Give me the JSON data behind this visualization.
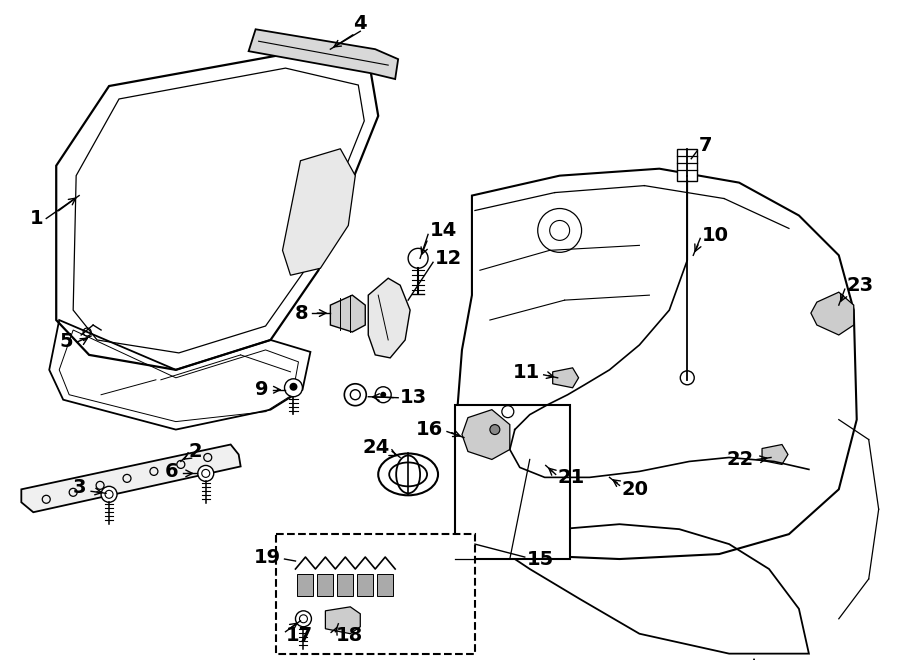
{
  "background_color": "#ffffff",
  "line_color": "#000000",
  "label_fontsize": 14,
  "fig_width": 9.0,
  "fig_height": 6.61
}
